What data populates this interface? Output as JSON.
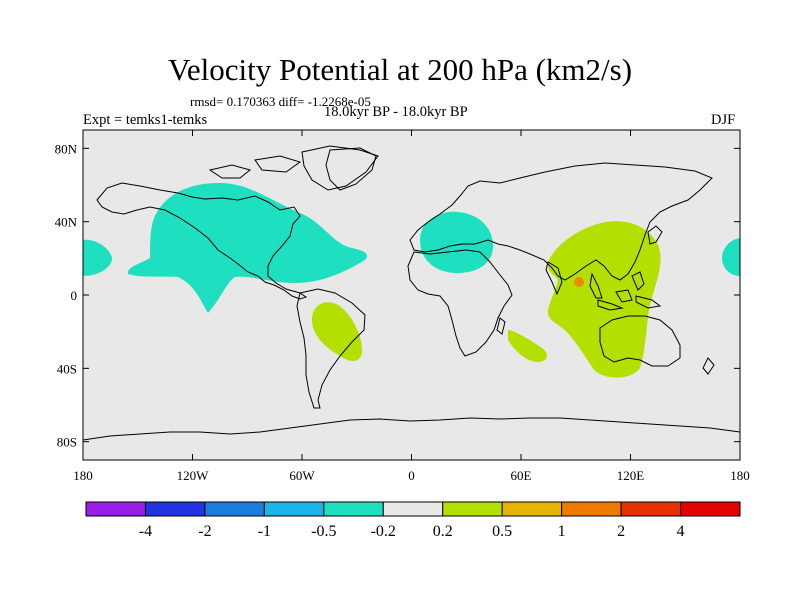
{
  "title": "Velocity Potential at 200 hPa (km2/s)",
  "stats": "rmsd= 0.170363 diff= -1.2268e-05",
  "experiment": "Expt = temks1-temks",
  "period": "18.0kyr BP - 18.0kyr BP",
  "season": "DJF",
  "lat_labels": [
    "80N",
    "40N",
    "0",
    "40S",
    "80S"
  ],
  "lat_values": [
    80,
    40,
    0,
    -40,
    -80
  ],
  "lon_labels": [
    "180",
    "120W",
    "60W",
    "0",
    "60E",
    "120E",
    "180"
  ],
  "lon_values": [
    -180,
    -120,
    -60,
    0,
    60,
    120,
    180
  ],
  "colorbar": {
    "colors": [
      "#9a1ee6",
      "#2233e0",
      "#1a7ee0",
      "#1ab4e6",
      "#1ee0c0",
      "#e8e8e8",
      "#b4e000",
      "#e6b400",
      "#ee7a00",
      "#e63200",
      "#e60000"
    ],
    "labels": [
      "-4",
      "-2",
      "-1",
      "-0.5",
      "-0.2",
      "0.2",
      "0.5",
      "1",
      "2",
      "4"
    ]
  },
  "colors": {
    "background": "#e8e8e8",
    "negative": "#1ee0c0",
    "positive": "#b4e000",
    "strong_positive": "#ee8a00"
  }
}
